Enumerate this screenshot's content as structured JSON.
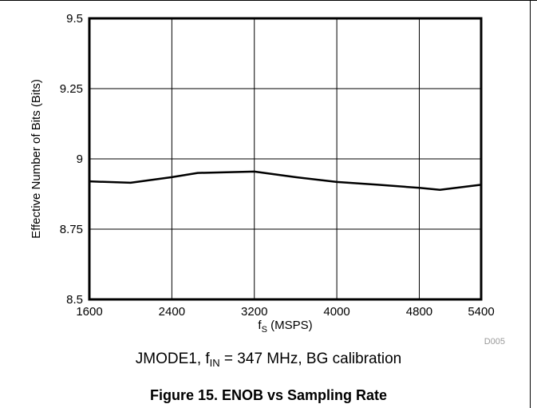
{
  "chart_data": {
    "type": "line",
    "xlabel_main": "f",
    "xlabel_sub": "S",
    "xlabel_suffix": " (MSPS)",
    "ylabel": "Effective Number of Bits (Bits)",
    "xlim": [
      1600,
      5400
    ],
    "ylim": [
      8.5,
      9.5
    ],
    "x_ticks": [
      1600,
      2400,
      3200,
      4000,
      4800,
      5400
    ],
    "x_tick_labels": [
      "1600",
      "2400",
      "3200",
      "4000",
      "4800",
      "5400"
    ],
    "x_gridlines": [
      1600,
      2400,
      3200,
      4000,
      4800,
      5400
    ],
    "y_ticks": [
      8.5,
      8.75,
      9,
      9.25,
      9.5
    ],
    "y_tick_labels": [
      "8.5",
      "8.75",
      "9",
      "9.25",
      "9.5"
    ],
    "grid": true,
    "series": [
      {
        "x": [
          1600,
          2000,
          2400,
          2650,
          3200,
          3600,
          4000,
          4400,
          4800,
          5000,
          5400
        ],
        "y": [
          8.92,
          8.915,
          8.935,
          8.95,
          8.955,
          8.935,
          8.918,
          8.908,
          8.897,
          8.89,
          8.908
        ]
      }
    ],
    "code": "D005"
  },
  "caption": {
    "pre": "JMODE1, f",
    "sub": "IN",
    "post": " = 347 MHz, BG calibration"
  },
  "figure_title": "Figure 15. ENOB vs Sampling Rate"
}
